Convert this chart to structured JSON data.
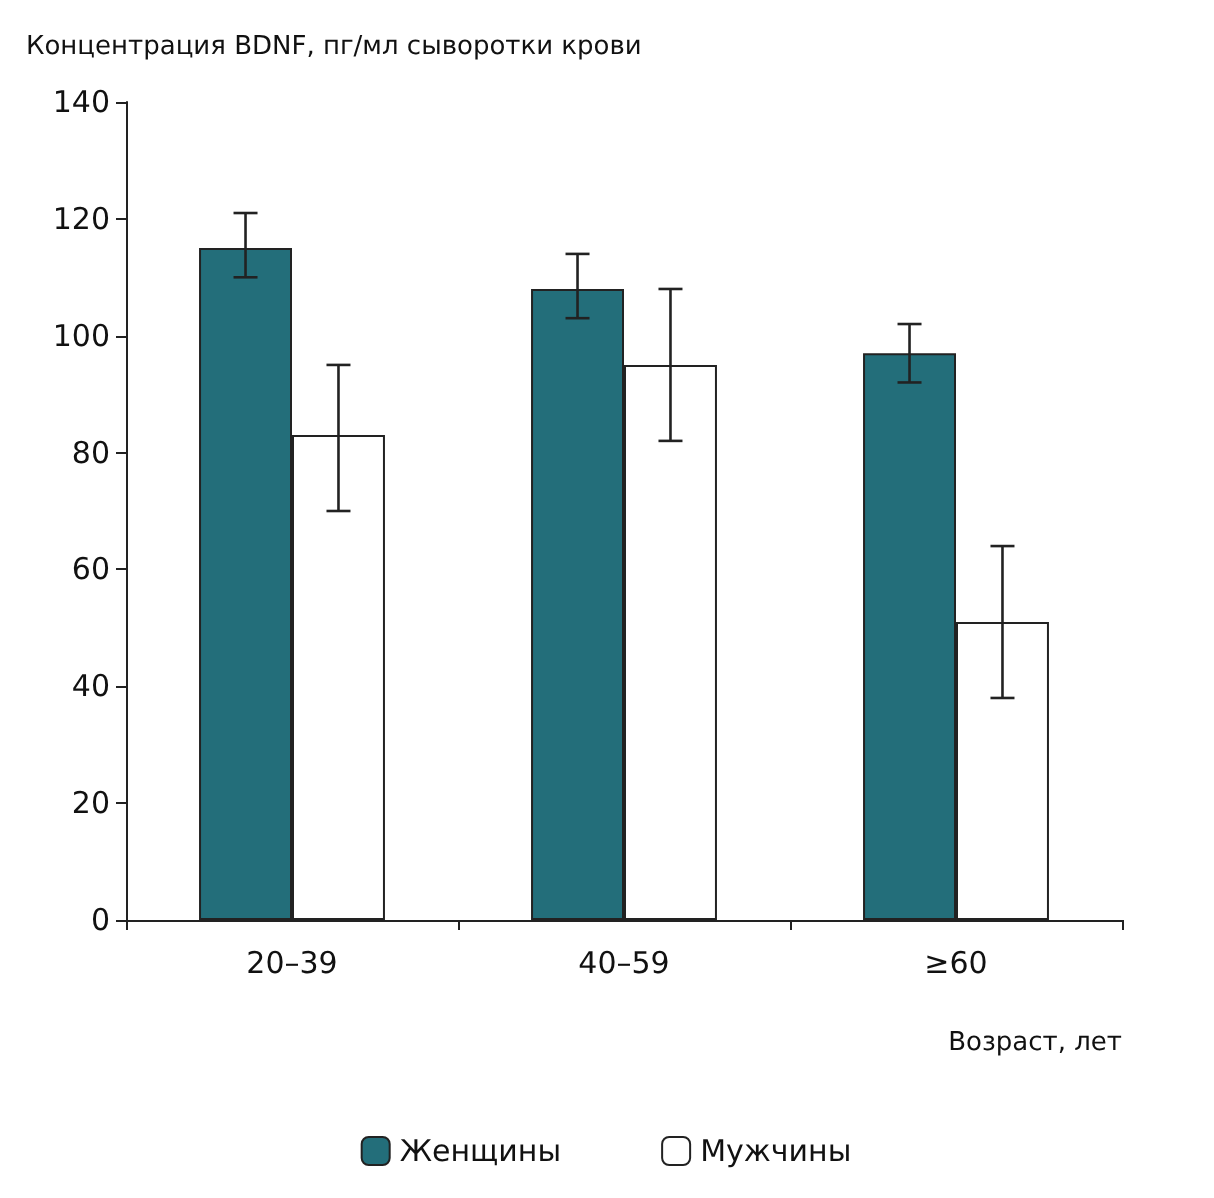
{
  "chart_data": {
    "type": "bar",
    "title": "Концентрация BDNF, пг/мл сыворотки крови",
    "xlabel": "Возраст, лет",
    "categories": [
      "20–39",
      "40–59",
      "≥60"
    ],
    "series": [
      {
        "name": "Женщины",
        "color": "#236e7a",
        "values": [
          115,
          108,
          97
        ],
        "errors": [
          [
            110,
            121
          ],
          [
            103,
            114
          ],
          [
            92,
            102
          ]
        ]
      },
      {
        "name": "Мужчины",
        "color": "#ffffff",
        "values": [
          83,
          95,
          51
        ],
        "errors": [
          [
            70,
            95
          ],
          [
            82,
            108
          ],
          [
            38,
            64
          ]
        ]
      }
    ],
    "ylim": [
      0,
      140
    ],
    "yticks": [
      0,
      20,
      40,
      60,
      80,
      100,
      120,
      140
    ],
    "grid": false,
    "legend": "bottom"
  }
}
